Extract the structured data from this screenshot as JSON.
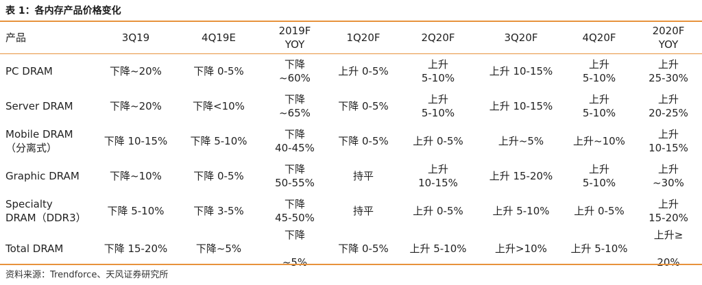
{
  "title": "表 1：各内存产品价格变化",
  "columns": [
    "产品",
    "3Q19",
    "4Q19E",
    "2019F\nYOY",
    "1Q20F",
    "2Q20F",
    "3Q20F",
    "4Q20F",
    "2020F\nYOY"
  ],
  "rows": [
    [
      "PC DRAM",
      "下降~20%",
      "下降 0-5%",
      "下降\n~60%",
      "上升 0-5%",
      "上升\n5-10%",
      "上升 10-15%",
      "上升\n5-10%",
      "上升\n25-30%"
    ],
    [
      "Server DRAM",
      "下降~20%",
      "下降<10%",
      "下降\n~65%",
      "下降 0-5%",
      "上升\n5-10%",
      "上升 10-15%",
      "上升\n5-10%",
      "上升\n20-25%"
    ],
    [
      "Mobile  DRAM\n（分离式）",
      "下降 10-15%",
      "下降 5-10%",
      "下降\n40-45%",
      "下降 0-5%",
      "上升 0-5%",
      "上升~5%",
      "上升~10%",
      "上升\n10-15%"
    ],
    [
      "Graphic DRAM",
      "下降~10%",
      "下降 0-5%",
      "下降\n50-55%",
      "持平",
      "上升\n10-15%",
      "上升 15-20%",
      "上升\n5-10%",
      "上升\n~30%"
    ],
    [
      "Specialty\nDRAM（DDR3）",
      "下降 5-10%",
      "下降 3-5%",
      "下降\n45-50%",
      "持平",
      "上升 0-5%",
      "上升 5-10%",
      "上升 0-5%",
      "上升\n15-20%"
    ],
    [
      "Total DRAM",
      "下降 15-20%",
      "下降~5%",
      "下降\n\n~5%",
      "下降 0-5%",
      "上升 5-10%",
      "上升>10%",
      "上升 5-10%",
      "上升≥\n\n20%"
    ]
  ],
  "source": "资料来源：Trendforce、天风证券研究所",
  "colors": {
    "rule": "#e7923c",
    "text": "#222222"
  }
}
